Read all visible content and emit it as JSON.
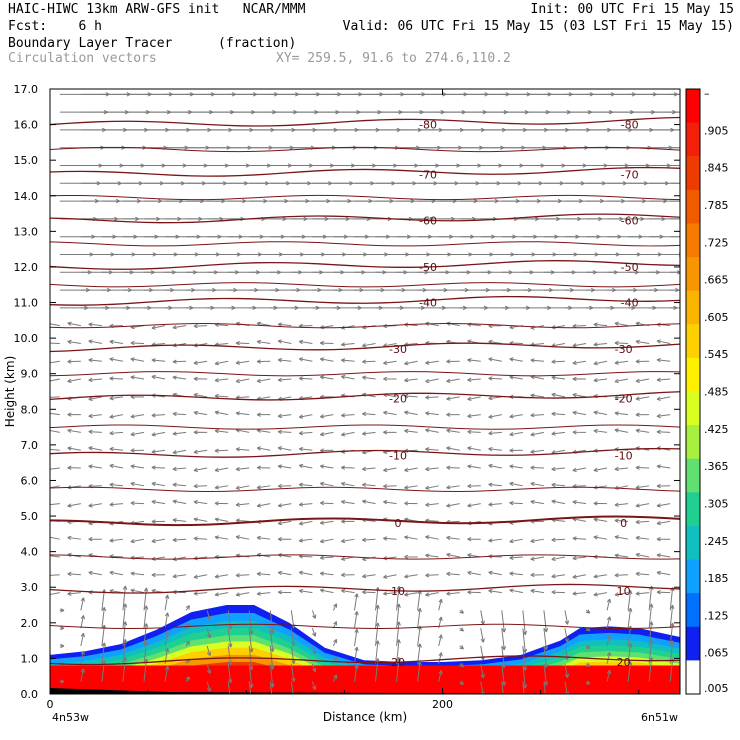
{
  "header": {
    "line1_left": "HAIC-HIWC 13km ARW-GFS init   NCAR/MMM",
    "line1_right": "Init: 00 UTC Fri 15 May 15",
    "line2_left": "Fcst:    6 h",
    "line2_right": "Valid: 06 UTC Fri 15 May 15 (03 LST Fri 15 May 15)",
    "field_name": "Boundary Layer Tracer",
    "field_units": "(fraction)",
    "vector_name": "Circulation vectors",
    "cross_section": "XY= 259.5, 91.6 to 274.6,110.2"
  },
  "chart_data": {
    "type": "heatmap",
    "xlabel": "Distance (km)",
    "ylabel": "Height (km)",
    "xlim": [
      0,
      321
    ],
    "ylim": [
      0,
      17
    ],
    "x_ticks": [
      "0",
      "200"
    ],
    "x_end_labels": [
      "4n53w",
      "6n51w"
    ],
    "y_ticks": [
      "0.0",
      "1.0",
      "2.0",
      "3.0",
      "4.0",
      "5.0",
      "6.0",
      "7.0",
      "8.0",
      "9.0",
      "10.0",
      "11.0",
      "12.0",
      "13.0",
      "14.0",
      "15.0",
      "16.0",
      "17.0"
    ],
    "colorbar": {
      "labels": [
        "–",
        ".905",
        ".845",
        ".785",
        ".725",
        ".665",
        ".605",
        ".545",
        ".485",
        ".425",
        ".365",
        ".305",
        ".245",
        ".185",
        ".125",
        ".065",
        ".005"
      ],
      "colors": [
        "#ff0000",
        "#f4200a",
        "#ee3c00",
        "#f25a00",
        "#f47a00",
        "#f89600",
        "#fbb400",
        "#ffd000",
        "#fff000",
        "#d8ff20",
        "#a8f040",
        "#60e070",
        "#20d090",
        "#10c0c0",
        "#10a0ff",
        "#0070ff",
        "#1020f0",
        "#ffffff"
      ]
    },
    "contour_levels": [
      {
        "level": "-80",
        "height": 16.0
      },
      {
        "level": "-70",
        "height": 14.6
      },
      {
        "level": "-60",
        "height": 13.3
      },
      {
        "level": "-50",
        "height": 12.0
      },
      {
        "level": "-40",
        "height": 11.0
      },
      {
        "level": "-30",
        "height": 9.7
      },
      {
        "level": "-20",
        "height": 8.3
      },
      {
        "level": "-10",
        "height": 6.7
      },
      {
        "level": "0",
        "height": 4.8
      },
      {
        "level": "10",
        "height": 2.9
      },
      {
        "level": "20",
        "height": 0.9
      }
    ],
    "tracer_top_km": [
      1.1,
      1.2,
      1.4,
      1.8,
      2.3,
      2.5,
      2.5,
      2.0,
      1.3,
      0.95,
      0.9,
      0.9,
      0.95,
      1.1,
      1.5,
      1.85,
      1.9,
      1.85,
      1.6
    ],
    "tracer_x_km": [
      0,
      18,
      36,
      54,
      72,
      90,
      104,
      122,
      140,
      160,
      180,
      200,
      220,
      240,
      260,
      270,
      285,
      300,
      321
    ]
  }
}
